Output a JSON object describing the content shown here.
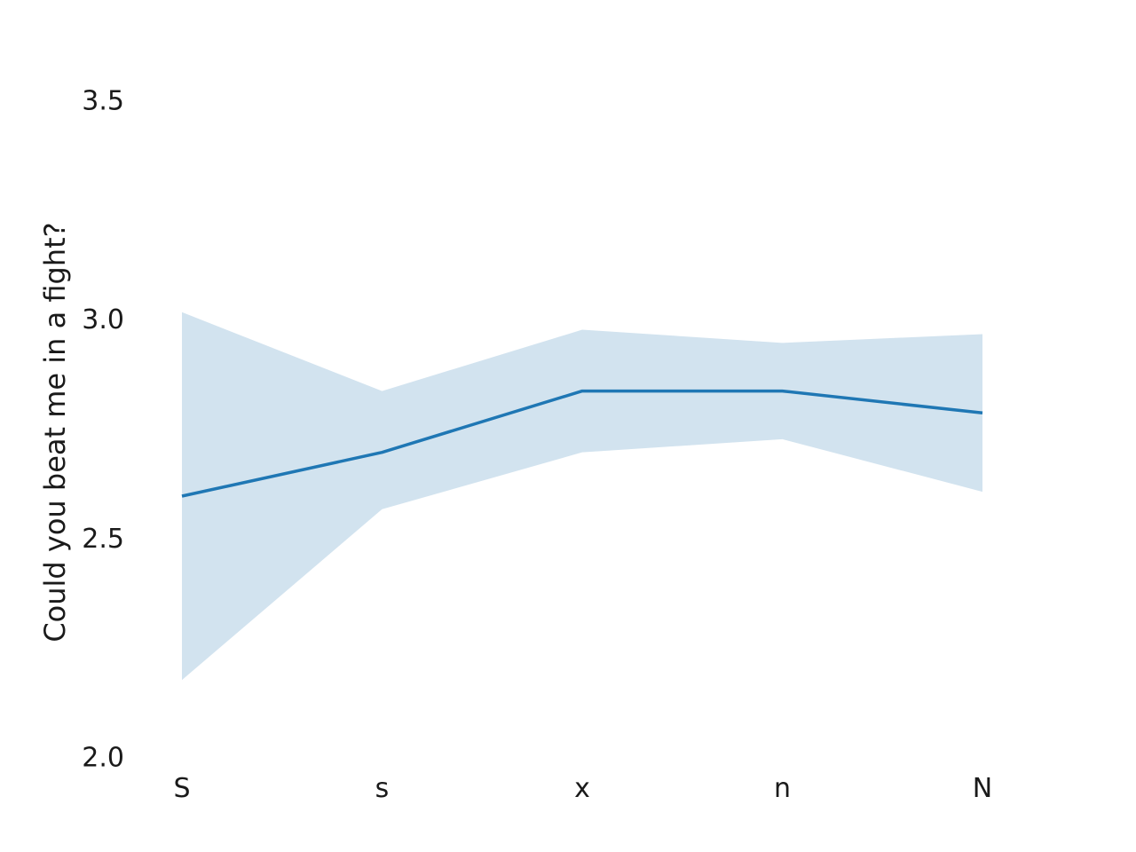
{
  "chart_data": {
    "type": "line",
    "title": "",
    "xlabel": "",
    "ylabel": "Could you beat me in a fight?",
    "categories": [
      "S",
      "s",
      "x",
      "n",
      "N"
    ],
    "series": [
      {
        "values": [
          2.6,
          2.7,
          2.84,
          2.84,
          2.79
        ],
        "ci_upper": [
          3.02,
          2.84,
          2.98,
          2.95,
          2.97
        ],
        "ci_lower": [
          2.18,
          2.57,
          2.7,
          2.73,
          2.61
        ],
        "color": "#1f77b4",
        "band_color": "#d2e3ef"
      }
    ],
    "ylim": [
      2.0,
      3.5
    ],
    "yticks": [
      "2.0",
      "2.5",
      "3.0",
      "3.5"
    ],
    "grid": false,
    "legend": "none"
  }
}
